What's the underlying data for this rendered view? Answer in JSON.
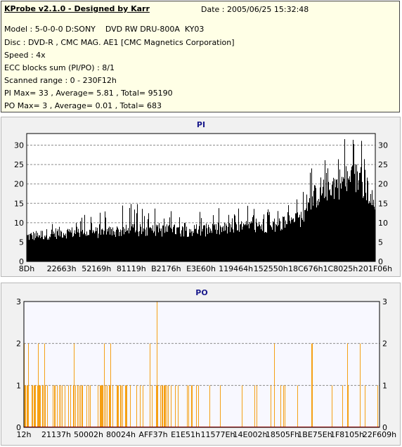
{
  "info": {
    "title": "KProbe v2.1.0 - Designed by Karr",
    "date": "Date : 2005/06/25 15:32:48",
    "model": "Model : 5-0-0-0 D:SONY    DVD RW DRU-800A  KY03",
    "disc": "Disc : DVD-R , CMC MAG. AE1 [CMC Magnetics Corporation]",
    "speed": "Speed : 4x",
    "ecc": "ECC blocks sum (PI/PO) : 8/1",
    "range": "Scanned range : 0 - 230F12h",
    "pi_summary": "PI Max= 33 , Average= 5.81 , Total= 95190",
    "po_summary": "PO Max= 3 , Average= 0.01 , Total= 683"
  },
  "colors": {
    "pi_bar": "#000000",
    "po_bar": "#f5a015",
    "po_zero": "#ff0000",
    "plot_bg": "#ffffff",
    "po_plot_bg": "#f8f8ff",
    "grid": "#8c8c8c",
    "title": "#1a1a8c"
  },
  "chart_data": [
    {
      "type": "bar",
      "title": "PI",
      "ylim": [
        0,
        33
      ],
      "yticks": [
        0,
        5,
        10,
        15,
        20,
        25,
        30
      ],
      "xtick_labels": [
        "8Dh",
        "22663h",
        "52169h",
        "81119h",
        "B2176h",
        "E3E60h",
        "119464h",
        "152550h",
        "18C676h",
        "1C8025h",
        "201F06h"
      ],
      "grid": true,
      "profile_x": [
        0,
        0.05,
        0.1,
        0.2,
        0.3,
        0.4,
        0.5,
        0.6,
        0.66,
        0.72,
        0.78,
        0.8,
        0.82,
        0.84,
        0.86,
        0.88,
        0.9,
        0.92,
        0.94,
        0.96,
        0.98,
        1.0
      ],
      "profile_avg": [
        6,
        6.5,
        7,
        7,
        7.5,
        7.5,
        7.5,
        8,
        8.5,
        9,
        10,
        12,
        15,
        17,
        18,
        18.5,
        19,
        19.5,
        20,
        20,
        17,
        12
      ],
      "profile_peak": [
        15,
        12,
        12,
        13,
        15,
        14,
        14,
        14,
        15,
        16,
        18,
        21,
        26,
        28,
        29,
        30,
        32,
        33,
        32,
        32,
        31,
        28
      ]
    },
    {
      "type": "bar",
      "title": "PO",
      "ylim": [
        0,
        3
      ],
      "yticks": [
        0,
        1,
        2,
        3
      ],
      "xtick_labels": [
        "12h",
        "21137h",
        "50002h",
        "80024h",
        "AFF37h",
        "E1E51h",
        "11577Eh",
        "14E002h",
        "18505Fh",
        "1BE75Eh",
        "1F8105h",
        "22F609h"
      ],
      "grid": true,
      "value_3_positions": [
        0.375
      ],
      "value_2_positions": [
        0.0,
        0.013,
        0.04,
        0.058,
        0.142,
        0.227,
        0.245,
        0.355,
        0.705,
        0.81,
        0.812,
        0.91,
        0.945
      ],
      "value_1_count": 120
    }
  ]
}
